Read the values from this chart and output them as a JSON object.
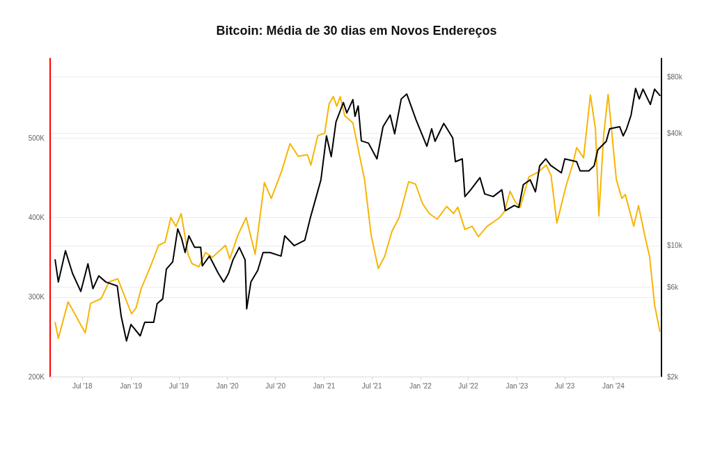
{
  "chart_data": {
    "type": "line",
    "title": "Bitcoin: Média de 30 dias em Novos Endereços",
    "xlim": [
      "2018-03-01",
      "2024-07-01"
    ],
    "xticks": [
      {
        "value": "2018-07-01",
        "label": "Jul '18"
      },
      {
        "value": "2019-01-01",
        "label": "Jan '19"
      },
      {
        "value": "2019-07-01",
        "label": "Jul '19"
      },
      {
        "value": "2020-01-01",
        "label": "Jan '20"
      },
      {
        "value": "2020-07-01",
        "label": "Jul '20"
      },
      {
        "value": "2021-01-01",
        "label": "Jan '21"
      },
      {
        "value": "2021-07-01",
        "label": "Jul '21"
      },
      {
        "value": "2022-01-01",
        "label": "Jan '22"
      },
      {
        "value": "2022-07-01",
        "label": "Jul '22"
      },
      {
        "value": "2023-01-01",
        "label": "Jan '23"
      },
      {
        "value": "2023-07-01",
        "label": "Jul '23"
      },
      {
        "value": "2024-01-01",
        "label": "Jan '24"
      }
    ],
    "ylim": [
      200000,
      600000
    ],
    "yticks": [
      {
        "value": 200000,
        "label": "200K"
      },
      {
        "value": 300000,
        "label": "300K"
      },
      {
        "value": 400000,
        "label": "400K"
      },
      {
        "value": 500000,
        "label": "500K"
      }
    ],
    "y2lim": [
      2000,
      100000
    ],
    "y2ticks": [
      {
        "value": 2000,
        "label": "$2k"
      },
      {
        "value": 6000,
        "label": "$6k"
      },
      {
        "value": 10000,
        "label": "$10k"
      },
      {
        "value": 40000,
        "label": "$40k"
      },
      {
        "value": 80000,
        "label": "$80k"
      }
    ],
    "log": "y2",
    "grid": "y",
    "marker": "none",
    "line_style": "solid",
    "series": [
      {
        "color": "#f7b500",
        "x": [
          "2018-03-20",
          "2018-04-01",
          "2018-05-08",
          "2018-07-12",
          "2018-08-01",
          "2018-09-10",
          "2018-10-10",
          "2018-11-12",
          "2019-01-03",
          "2019-01-20",
          "2019-02-08",
          "2019-03-20",
          "2019-04-15",
          "2019-05-10",
          "2019-06-01",
          "2019-06-20",
          "2019-07-10",
          "2019-08-05",
          "2019-08-20",
          "2019-09-15",
          "2019-10-10",
          "2019-11-05",
          "2019-12-25",
          "2020-01-10",
          "2020-02-10",
          "2020-03-12",
          "2020-04-15",
          "2020-05-20",
          "2020-06-15",
          "2020-07-25",
          "2020-08-25",
          "2020-09-25",
          "2020-10-30",
          "2020-11-12",
          "2020-12-08",
          "2021-01-03",
          "2021-01-20",
          "2021-02-05",
          "2021-02-18",
          "2021-03-03",
          "2021-03-20",
          "2021-04-20",
          "2021-05-12",
          "2021-06-03",
          "2021-06-28",
          "2021-07-25",
          "2021-08-18",
          "2021-09-15",
          "2021-10-12",
          "2021-11-17",
          "2021-12-13",
          "2022-01-08",
          "2022-02-03",
          "2022-03-05",
          "2022-04-10",
          "2022-05-06",
          "2022-05-22",
          "2022-06-18",
          "2022-07-15",
          "2022-08-08",
          "2022-09-10",
          "2022-10-28",
          "2022-11-15",
          "2022-12-06",
          "2022-12-25",
          "2023-01-13",
          "2023-02-15",
          "2023-03-22",
          "2023-04-22",
          "2023-05-10",
          "2023-06-01",
          "2023-07-06",
          "2023-08-01",
          "2023-08-15",
          "2023-09-10",
          "2023-10-06",
          "2023-10-25",
          "2023-11-07",
          "2023-11-25",
          "2023-12-12",
          "2024-01-12",
          "2024-02-02",
          "2024-02-15",
          "2024-03-18",
          "2024-04-05",
          "2024-05-01",
          "2024-05-17",
          "2024-06-05",
          "2024-06-25"
        ],
        "values": [
          268000,
          248000,
          294000,
          255000,
          292000,
          298000,
          319000,
          323000,
          279000,
          286000,
          310000,
          342000,
          365000,
          369000,
          400000,
          389000,
          405000,
          354000,
          342000,
          338000,
          356000,
          350000,
          365000,
          348000,
          378000,
          400000,
          354000,
          444000,
          424000,
          459000,
          493000,
          477000,
          479000,
          466000,
          503000,
          506000,
          543000,
          552000,
          540000,
          552000,
          528000,
          519000,
          483000,
          448000,
          378000,
          336000,
          351000,
          383000,
          400000,
          445000,
          442000,
          418000,
          405000,
          398000,
          414000,
          405000,
          413000,
          385000,
          389000,
          376000,
          389000,
          400000,
          408000,
          433000,
          420000,
          413000,
          451000,
          457000,
          466000,
          453000,
          393000,
          440000,
          468000,
          488000,
          475000,
          554000,
          512000,
          402000,
          503000,
          555000,
          448000,
          424000,
          429000,
          389000,
          415000,
          374000,
          351000,
          290000,
          257000
        ]
      },
      {
        "color": "#000000",
        "axis": "y2",
        "x": [
          "2018-03-20",
          "2018-04-01",
          "2018-04-28",
          "2018-05-25",
          "2018-06-25",
          "2018-07-22",
          "2018-08-10",
          "2018-09-01",
          "2018-09-28",
          "2018-11-10",
          "2018-11-25",
          "2018-12-15",
          "2019-01-01",
          "2019-02-05",
          "2019-02-22",
          "2019-03-28",
          "2019-04-10",
          "2019-05-01",
          "2019-05-15",
          "2019-06-08",
          "2019-06-27",
          "2019-07-12",
          "2019-07-25",
          "2019-08-08",
          "2019-08-30",
          "2019-09-22",
          "2019-09-28",
          "2019-10-25",
          "2019-11-28",
          "2019-12-18",
          "2020-01-05",
          "2020-01-22",
          "2020-02-15",
          "2020-03-08",
          "2020-03-14",
          "2020-03-30",
          "2020-04-25",
          "2020-05-15",
          "2020-06-10",
          "2020-07-22",
          "2020-08-05",
          "2020-09-10",
          "2020-10-20",
          "2020-11-10",
          "2020-11-30",
          "2020-12-20",
          "2021-01-10",
          "2021-01-28",
          "2021-02-15",
          "2021-03-15",
          "2021-03-28",
          "2021-04-20",
          "2021-04-28",
          "2021-05-10",
          "2021-05-22",
          "2021-06-18",
          "2021-07-20",
          "2021-08-12",
          "2021-09-08",
          "2021-09-25",
          "2021-10-20",
          "2021-11-10",
          "2021-12-15",
          "2022-01-25",
          "2022-02-12",
          "2022-02-25",
          "2022-03-30",
          "2022-05-03",
          "2022-05-13",
          "2022-06-08",
          "2022-06-18",
          "2022-07-10",
          "2022-08-14",
          "2022-09-01",
          "2022-10-03",
          "2022-11-05",
          "2022-11-18",
          "2022-12-22",
          "2023-01-08",
          "2023-01-25",
          "2023-02-20",
          "2023-03-12",
          "2023-03-28",
          "2023-04-20",
          "2023-05-08",
          "2023-06-18",
          "2023-07-01",
          "2023-08-15",
          "2023-08-28",
          "2023-09-30",
          "2023-10-20",
          "2023-11-03",
          "2023-12-05",
          "2023-12-18",
          "2024-01-25",
          "2024-02-07",
          "2024-02-20",
          "2024-03-08",
          "2024-03-25",
          "2024-04-08",
          "2024-04-22",
          "2024-05-20",
          "2024-06-05",
          "2024-06-25"
        ],
        "values": [
          8400,
          6400,
          9400,
          7100,
          5700,
          8000,
          5900,
          6900,
          6400,
          6100,
          4200,
          3100,
          3800,
          3300,
          3900,
          3900,
          4900,
          5200,
          7500,
          8200,
          12300,
          10900,
          9200,
          11300,
          9800,
          9800,
          7800,
          8800,
          7100,
          6400,
          7100,
          8400,
          9800,
          8400,
          4600,
          6400,
          7400,
          9200,
          9200,
          8800,
          11300,
          10000,
          10700,
          14100,
          17800,
          22500,
          38600,
          29900,
          45800,
          58200,
          51200,
          60300,
          49100,
          55800,
          36300,
          35300,
          29100,
          43200,
          49900,
          39600,
          60800,
          64600,
          47000,
          34000,
          42100,
          36100,
          45000,
          37600,
          28100,
          29100,
          18300,
          19900,
          23100,
          18900,
          18300,
          19900,
          15400,
          16400,
          16000,
          21200,
          22500,
          19400,
          26700,
          29100,
          26900,
          24500,
          29100,
          28100,
          25100,
          25100,
          26700,
          32500,
          36100,
          42100,
          43200,
          38600,
          42100,
          49900,
          69200,
          60800,
          68600,
          56800,
          68600,
          63500
        ]
      }
    ]
  }
}
